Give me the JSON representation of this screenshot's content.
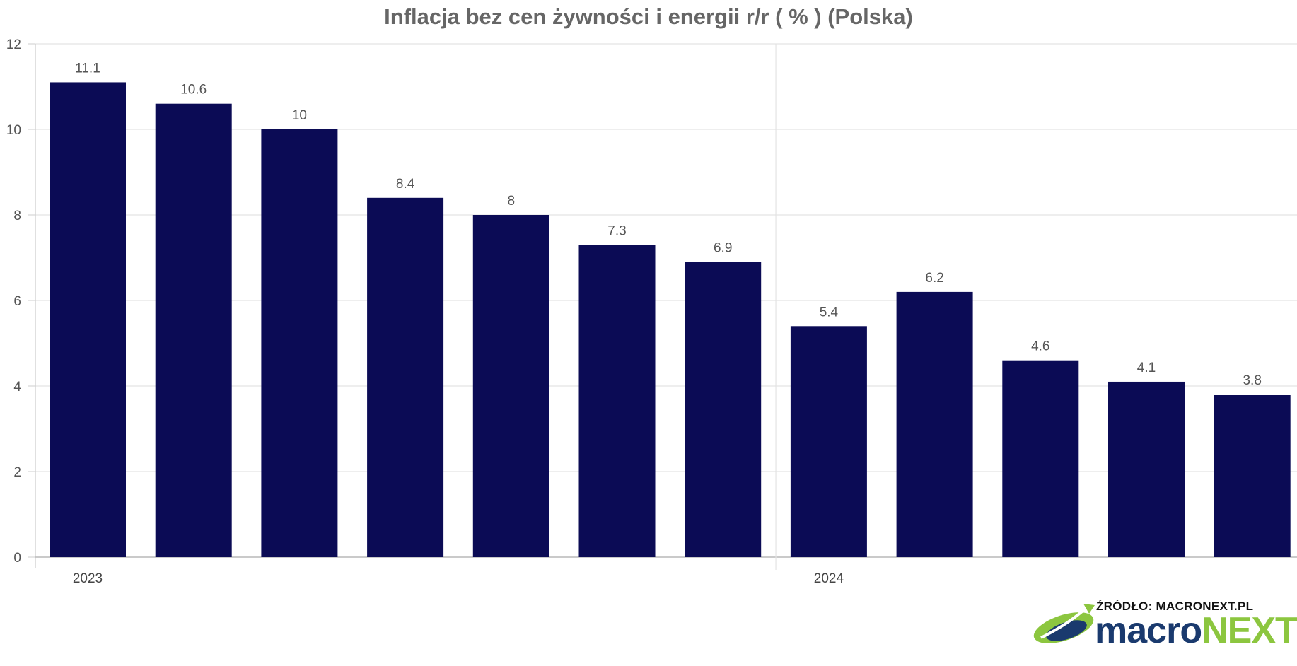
{
  "chart_data": {
    "type": "bar",
    "title": "Inflacja bez cen żywności i energii r/r ( % ) (Polska)",
    "categories": [
      "",
      "",
      "",
      "",
      "",
      "",
      "",
      "",
      "",
      "",
      "",
      ""
    ],
    "values": [
      11.1,
      10.6,
      10,
      8.4,
      8,
      7.3,
      6.9,
      5.4,
      6.2,
      4.6,
      4.1,
      3.8
    ],
    "value_labels": [
      "11.1",
      "10.6",
      "10",
      "8.4",
      "8",
      "7.3",
      "6.9",
      "5.4",
      "6.2",
      "4.6",
      "4.1",
      "3.8"
    ],
    "x_period_labels": [
      {
        "label": "2023",
        "at_index": 0
      },
      {
        "label": "2024",
        "at_index": 7
      }
    ],
    "yticks": [
      "0",
      "2",
      "4",
      "6",
      "8",
      "10",
      "12"
    ],
    "ylim": [
      0,
      12
    ],
    "xlabel": "",
    "ylabel": "",
    "grid": true,
    "bar_color": "#0b0b55"
  },
  "source": {
    "text": "ŹRÓDŁO: MACRONEXT.PL",
    "logo_part1": "macro",
    "logo_part2": "NEXT",
    "logo_color_1": "#1a3a6e",
    "logo_color_2": "#8cc63f"
  }
}
